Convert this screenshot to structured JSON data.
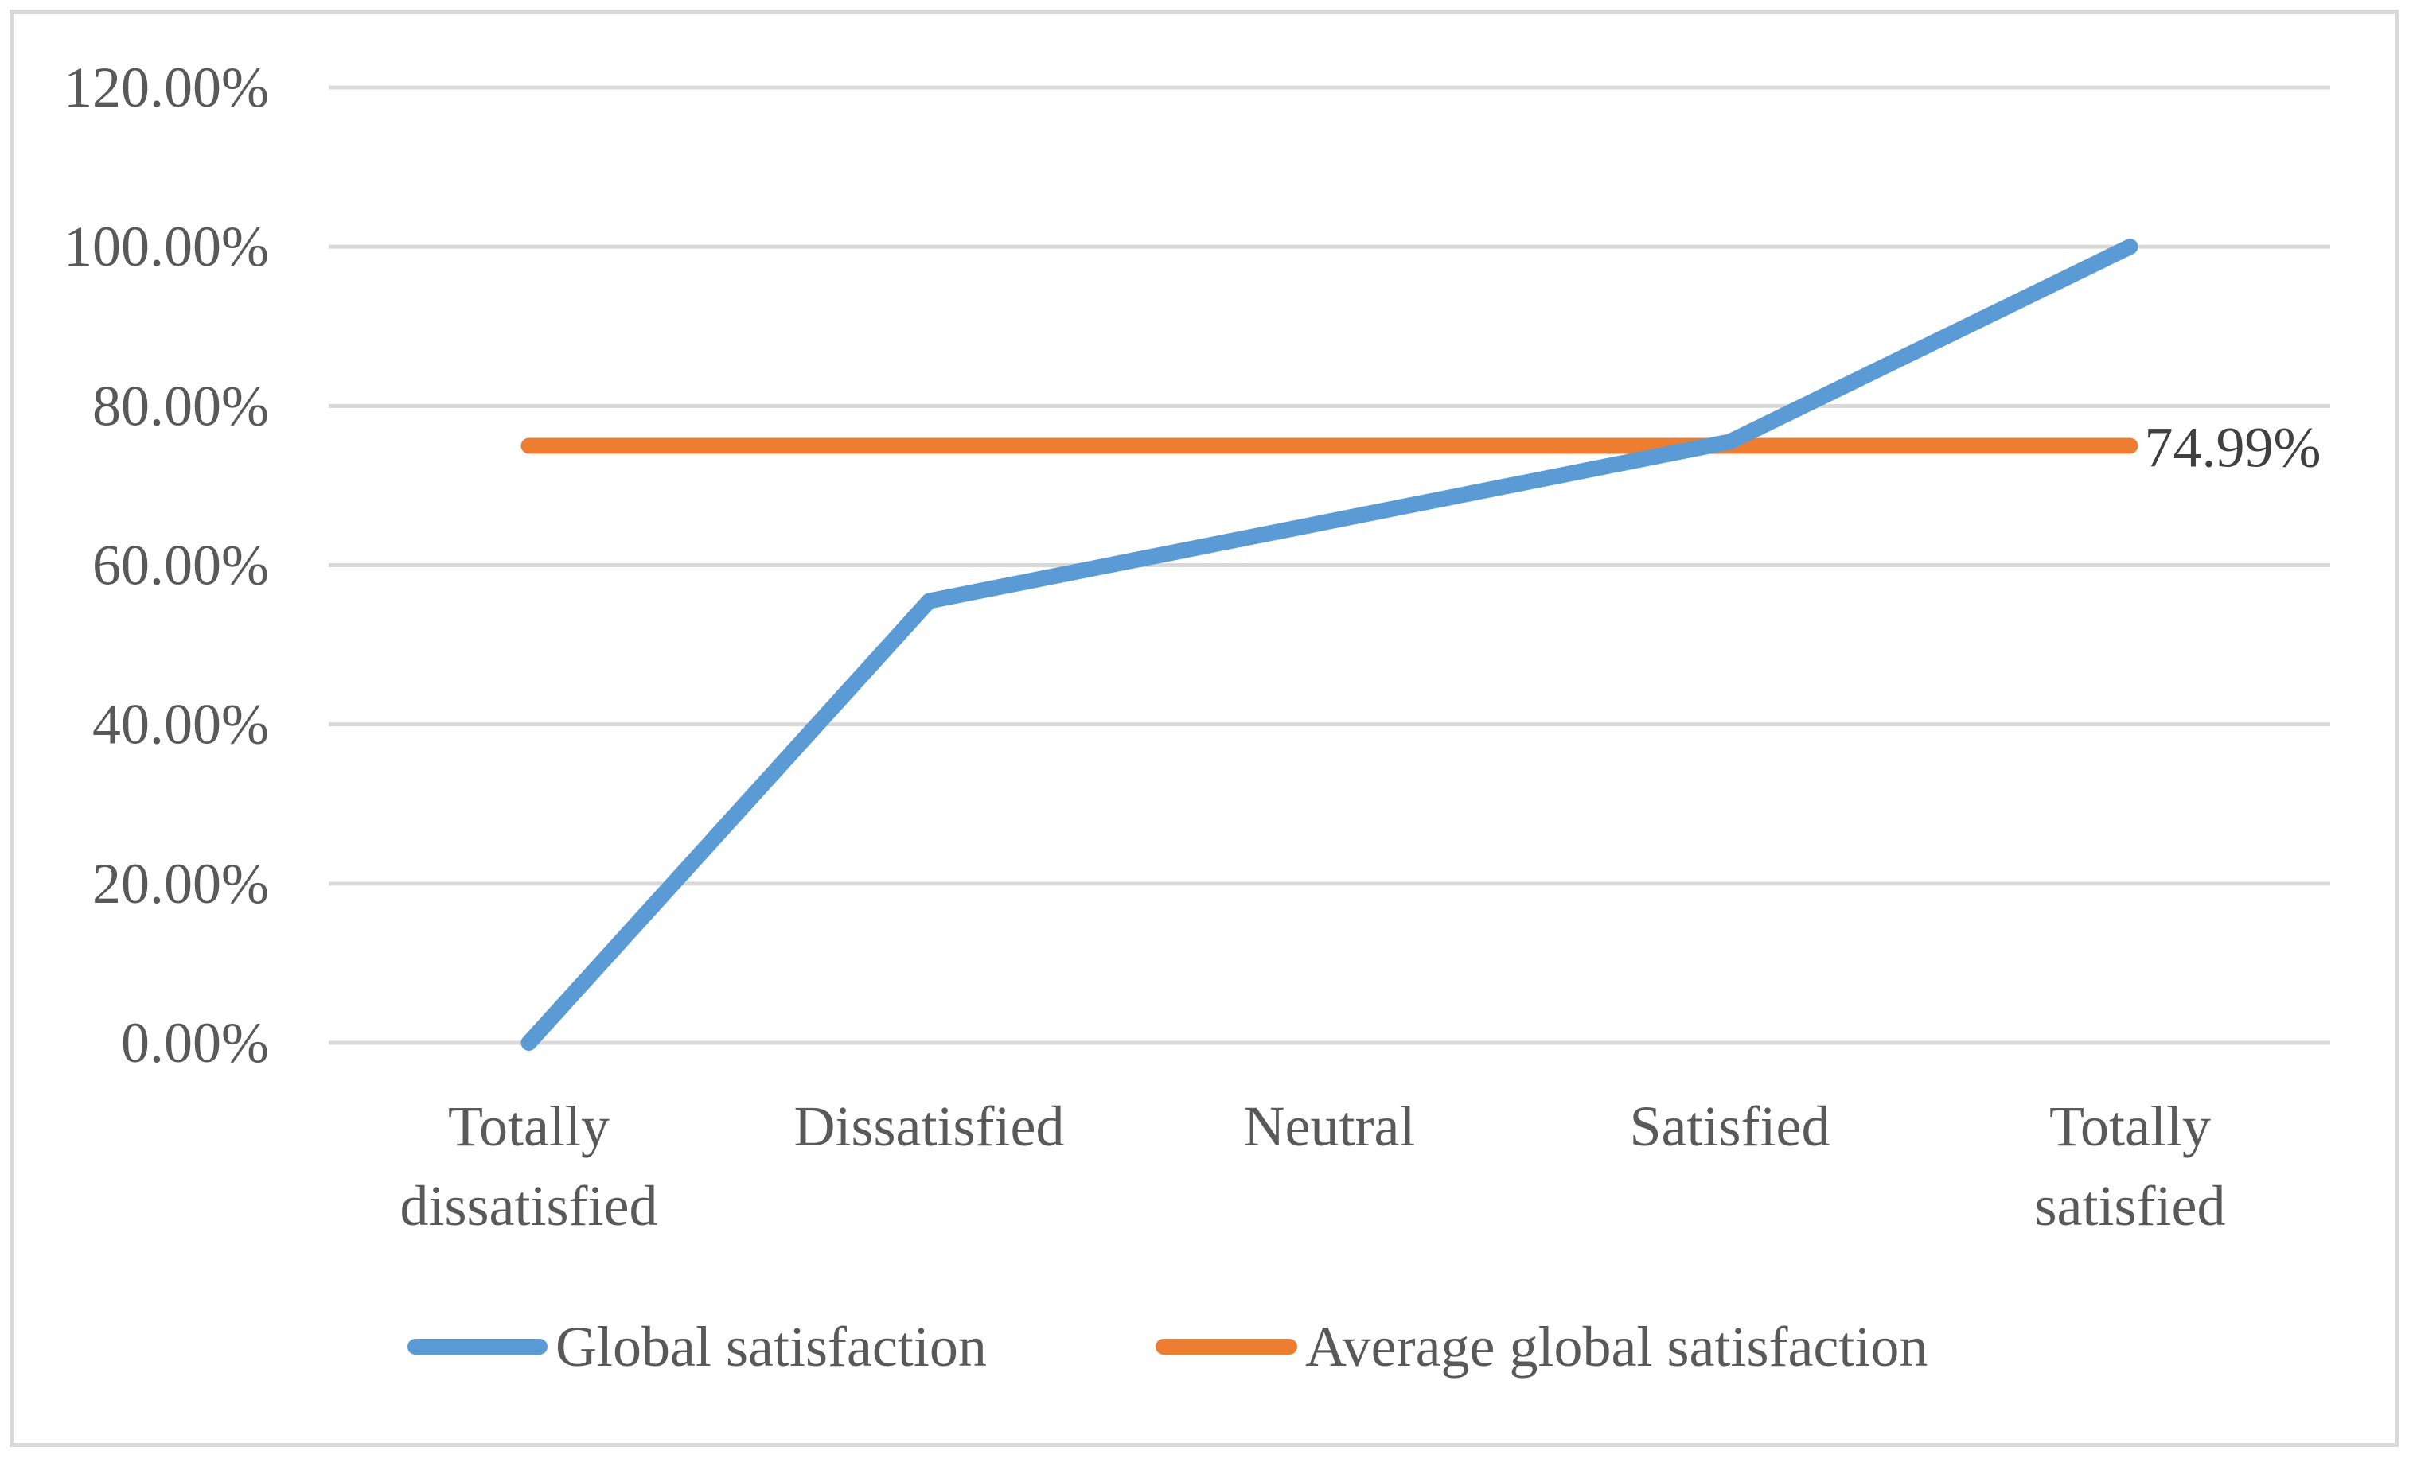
{
  "chart_data": {
    "type": "line",
    "title": "",
    "xlabel": "",
    "ylabel": "",
    "ylim": [
      0,
      120
    ],
    "y_ticks": [
      "0.00%",
      "20.00%",
      "40.00%",
      "60.00%",
      "80.00%",
      "100.00%",
      "120.00%"
    ],
    "y_tick_values": [
      0,
      20,
      40,
      60,
      80,
      100,
      120
    ],
    "categories": [
      [
        "Totally",
        "dissatisfied"
      ],
      [
        "Dissatisfied"
      ],
      [
        "Neutral"
      ],
      [
        "Satisfied"
      ],
      [
        "Totally",
        "satisfied"
      ]
    ],
    "grid": true,
    "legend_position": "bottom",
    "series": [
      {
        "name": "Global satisfaction",
        "color": "#5b9bd5",
        "values": [
          0,
          55.5,
          65.5,
          75.5,
          100
        ]
      },
      {
        "name": "Average global satisfaction",
        "color": "#ed7d31",
        "values": [
          74.99,
          74.99,
          74.99,
          74.99,
          74.99
        ],
        "end_label": "74.99%"
      }
    ]
  }
}
